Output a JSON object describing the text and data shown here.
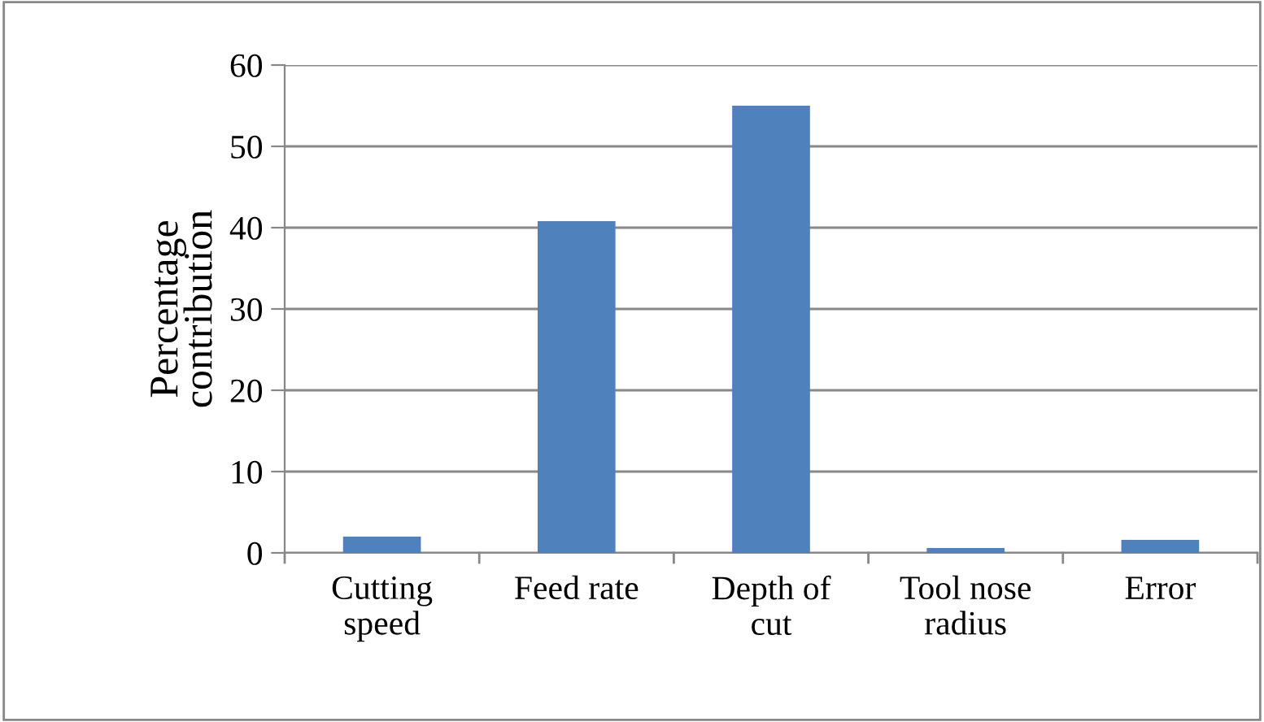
{
  "chart_data": {
    "type": "bar",
    "ylabel": "Percentage\ncontribution",
    "categories": [
      "Cutting\nspeed",
      "Feed rate",
      "Depth of\ncut",
      "Tool nose\nradius",
      "Error"
    ],
    "values": [
      2,
      40.8,
      55,
      0.6,
      1.6
    ],
    "color": "#4f81bd",
    "ylim": [
      0,
      60
    ],
    "yticks": [
      0,
      10,
      20,
      30,
      40,
      50,
      60
    ],
    "grid": "y"
  }
}
